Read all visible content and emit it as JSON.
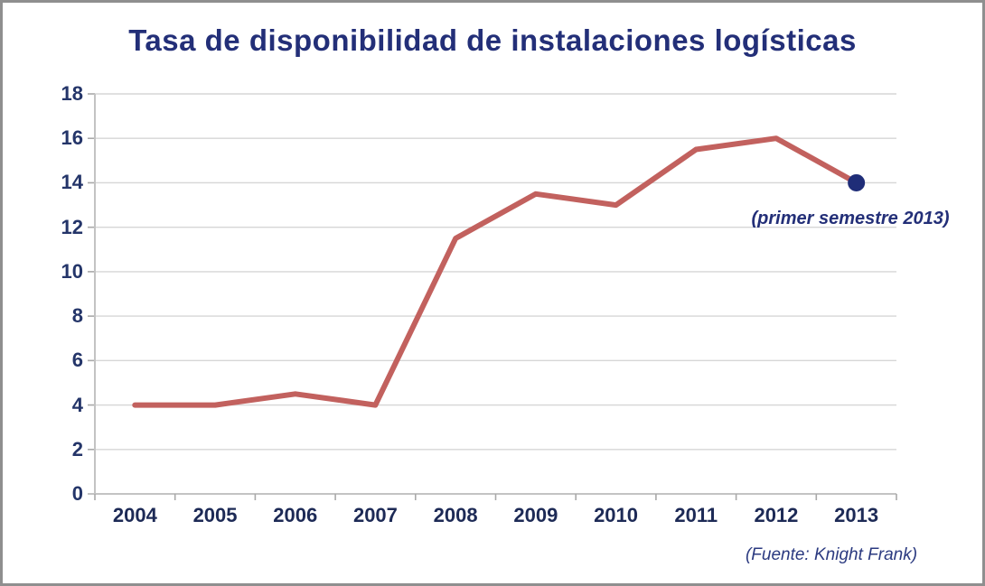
{
  "window": {
    "background_color": "#ffffff",
    "frame_border_color": "#8f8f8f"
  },
  "chart": {
    "title": "Tasa de disponibilidad de instalaciones logísticas",
    "annotation": "(primer semestre 2013)",
    "source": "(Fuente: Knight Frank)"
  },
  "chart_data": {
    "type": "line",
    "title": "Tasa de disponibilidad de instalaciones logísticas",
    "categories": [
      "2004",
      "2005",
      "2006",
      "2007",
      "2008",
      "2009",
      "2010",
      "2011",
      "2012",
      "2013"
    ],
    "values": [
      4,
      4,
      4.5,
      4,
      11.5,
      13.5,
      13,
      15.5,
      16,
      14
    ],
    "xlabel": "",
    "ylabel": "",
    "ylim": [
      0,
      18
    ],
    "yticks": [
      0,
      2,
      4,
      6,
      8,
      10,
      12,
      14,
      16,
      18
    ],
    "grid": true,
    "legend": "none",
    "annotation": {
      "text": "(primer semestre 2013)",
      "target_category": "2013",
      "position": "below last data point"
    },
    "last_point_marker": {
      "shape": "circle",
      "value": 14,
      "category": "2013"
    },
    "colors": {
      "line": "#c2615e",
      "marker": "#1f2d78",
      "title_text": "#232f78",
      "tick_text": "#243569",
      "gridline": "#d6d6d6",
      "axis": "#c3c3c3",
      "tick_mark": "#a9a9a9"
    }
  }
}
